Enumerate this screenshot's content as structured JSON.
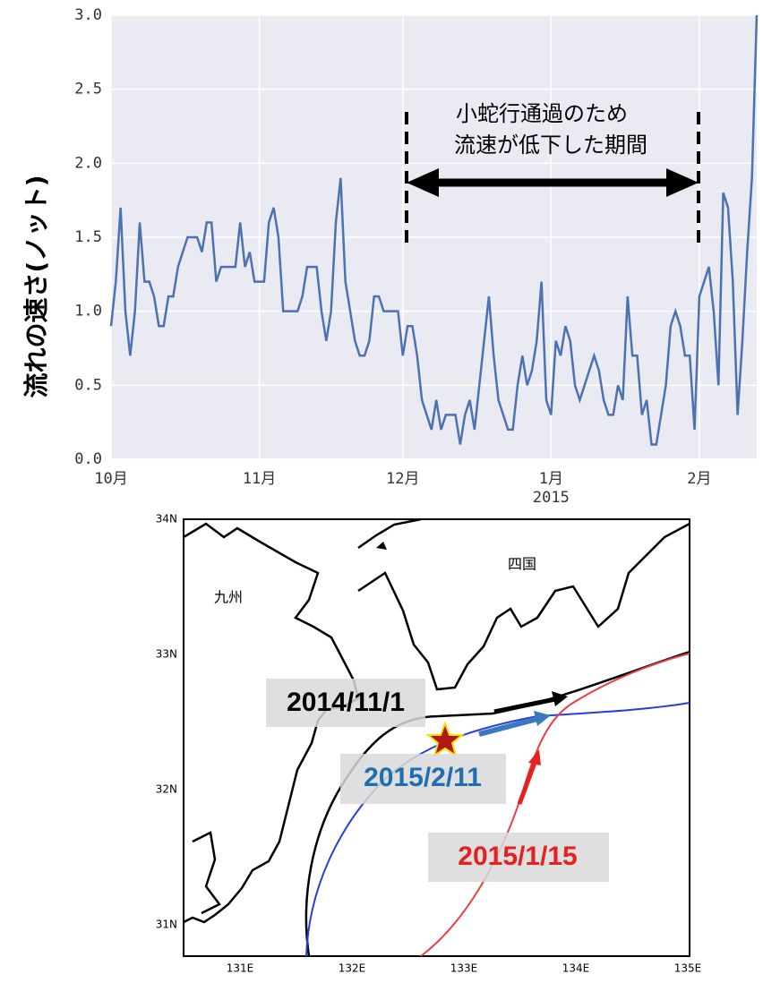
{
  "chart_data": {
    "type": "line",
    "ylabel": "流れの速さ(ノット)",
    "annotation": [
      "小蛇行通過のため",
      "流速が低下した期間"
    ],
    "x_year_label": "2015",
    "categories": [
      "10月",
      null,
      null,
      null,
      null,
      null,
      null,
      null,
      null,
      null,
      null,
      null,
      null,
      null,
      null,
      null,
      null,
      null,
      null,
      null,
      null,
      null,
      null,
      null,
      null,
      null,
      null,
      null,
      null,
      null,
      null,
      "11月",
      null,
      null,
      null,
      null,
      null,
      null,
      null,
      null,
      null,
      null,
      null,
      null,
      null,
      null,
      null,
      null,
      null,
      null,
      null,
      null,
      null,
      null,
      null,
      null,
      null,
      null,
      null,
      null,
      null,
      "12月",
      null,
      null,
      null,
      null,
      null,
      null,
      null,
      null,
      null,
      null,
      null,
      null,
      null,
      null,
      null,
      null,
      null,
      null,
      null,
      null,
      null,
      null,
      null,
      null,
      null,
      null,
      null,
      null,
      null,
      null,
      "1月",
      null,
      null,
      null,
      null,
      null,
      null,
      null,
      null,
      null,
      null,
      null,
      null,
      null,
      null,
      null,
      null,
      null,
      null,
      null,
      null,
      null,
      null,
      null,
      null,
      null,
      null,
      null,
      null,
      null,
      null,
      "2月",
      null,
      null,
      null,
      null,
      null,
      null,
      null,
      null,
      null,
      null,
      null,
      null
    ],
    "values": [
      0.9,
      1.2,
      1.7,
      1.0,
      0.7,
      1.0,
      1.6,
      1.2,
      1.2,
      1.1,
      0.9,
      0.9,
      1.1,
      1.1,
      1.3,
      1.4,
      1.5,
      1.5,
      1.5,
      1.4,
      1.6,
      1.6,
      1.2,
      1.3,
      1.3,
      1.3,
      1.3,
      1.6,
      1.3,
      1.4,
      1.2,
      1.2,
      1.2,
      1.6,
      1.7,
      1.5,
      1.0,
      1.0,
      1.0,
      1.0,
      1.1,
      1.3,
      1.3,
      1.3,
      1.0,
      0.8,
      1.0,
      1.6,
      1.9,
      1.2,
      1.0,
      0.8,
      0.7,
      0.7,
      0.8,
      1.1,
      1.1,
      1.0,
      1.0,
      1.0,
      1.0,
      0.7,
      0.9,
      0.9,
      0.7,
      0.4,
      0.3,
      0.2,
      0.4,
      0.2,
      0.3,
      0.3,
      0.3,
      0.1,
      0.3,
      0.4,
      0.2,
      0.5,
      0.8,
      1.1,
      0.7,
      0.4,
      0.3,
      0.2,
      0.2,
      0.5,
      0.7,
      0.5,
      0.6,
      0.8,
      1.2,
      0.4,
      0.3,
      0.8,
      0.7,
      0.9,
      0.8,
      0.5,
      0.4,
      0.5,
      0.6,
      0.7,
      0.6,
      0.4,
      0.3,
      0.3,
      0.5,
      0.4,
      1.1,
      0.7,
      0.7,
      0.3,
      0.4,
      0.1,
      0.1,
      0.3,
      0.5,
      0.9,
      1.0,
      0.9,
      0.7,
      0.7,
      0.2,
      1.1,
      1.2,
      1.3,
      1.0,
      0.5,
      1.8,
      1.7,
      1.2,
      0.3,
      0.8,
      1.4,
      1.9,
      3.0
    ],
    "color": "#4c72b0",
    "ylim": [
      0,
      3
    ],
    "yticks": [
      {
        "value": 0,
        "label": "0.0"
      },
      {
        "value": 0.5,
        "label": "0.5"
      },
      {
        "value": 1,
        "label": "1.0"
      },
      {
        "value": 1.5,
        "label": "1.5"
      },
      {
        "value": 2,
        "label": "2.0"
      },
      {
        "value": 2.5,
        "label": "2.5"
      },
      {
        "value": 3,
        "label": "3.0"
      }
    ],
    "grid": true
  },
  "map": {
    "lat_labels": [
      "34N",
      "33N",
      "32N",
      "31N"
    ],
    "lon_labels": [
      "131E",
      "132E",
      "133E",
      "134E",
      "135E"
    ],
    "regions": [
      "九州",
      "四国"
    ],
    "track_labels": [
      "2014/11/1",
      "2015/2/11",
      "2015/1/15"
    ]
  }
}
